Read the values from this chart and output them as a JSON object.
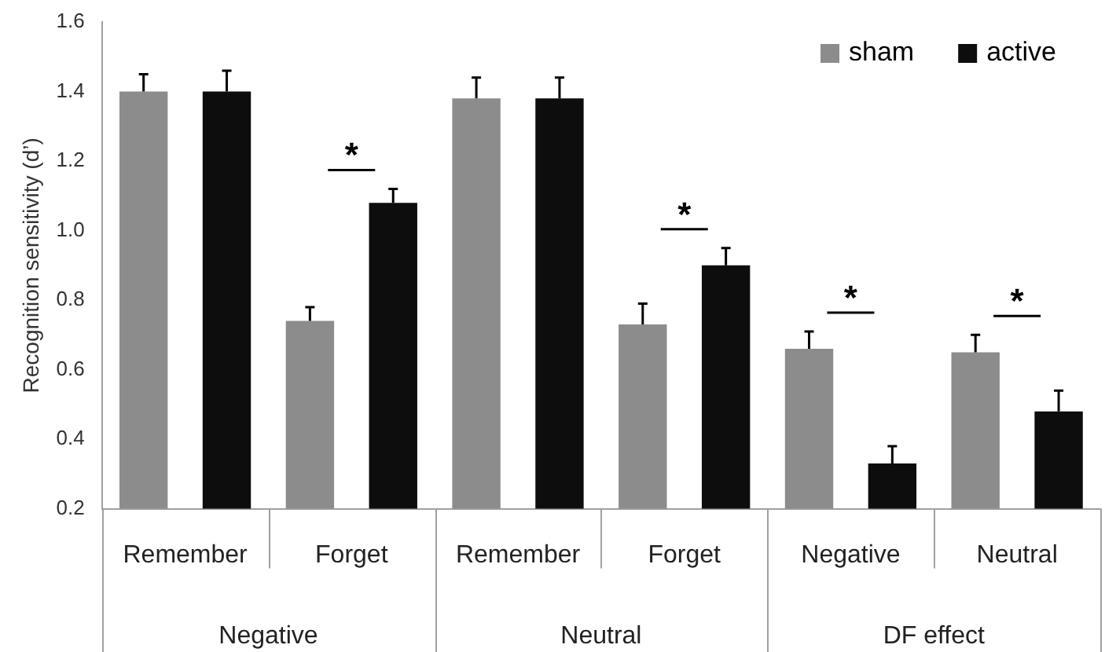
{
  "chart_data": {
    "type": "bar",
    "ylabel": "Recognition sensitivity (d’)",
    "categories": [
      "Remember",
      "Forget",
      "Remember",
      "Forget",
      "Negative",
      "Neutral"
    ],
    "series": [
      {
        "name": "sham",
        "color": "#8c8c8c",
        "values": [
          1.4,
          0.74,
          1.38,
          0.73,
          0.66,
          0.65
        ],
        "errors": [
          [
            1.4,
            1.45
          ],
          [
            0.74,
            0.78
          ],
          [
            1.38,
            1.44
          ],
          [
            0.73,
            0.79
          ],
          [
            0.66,
            0.71
          ],
          [
            0.65,
            0.7
          ]
        ]
      },
      {
        "name": "active",
        "color": "#0d0d0d",
        "values": [
          1.4,
          1.08,
          1.38,
          0.9,
          0.33,
          0.48
        ],
        "errors": [
          [
            1.4,
            1.46
          ],
          [
            1.08,
            1.12
          ],
          [
            1.38,
            1.44
          ],
          [
            0.9,
            0.95
          ],
          [
            0.33,
            0.38
          ],
          [
            0.48,
            0.54
          ]
        ]
      }
    ],
    "ylim": [
      0.2,
      1.6
    ],
    "yticks": [
      0.2,
      0.4,
      0.6,
      0.8,
      {
        "value": 1,
        "label": "1.0"
      },
      1.2,
      1.4,
      1.6
    ],
    "legend": "top right",
    "grid": false,
    "annotations": [
      "Negative",
      "Neutral",
      "DF effect",
      "*",
      "*",
      "*",
      "*"
    ]
  }
}
